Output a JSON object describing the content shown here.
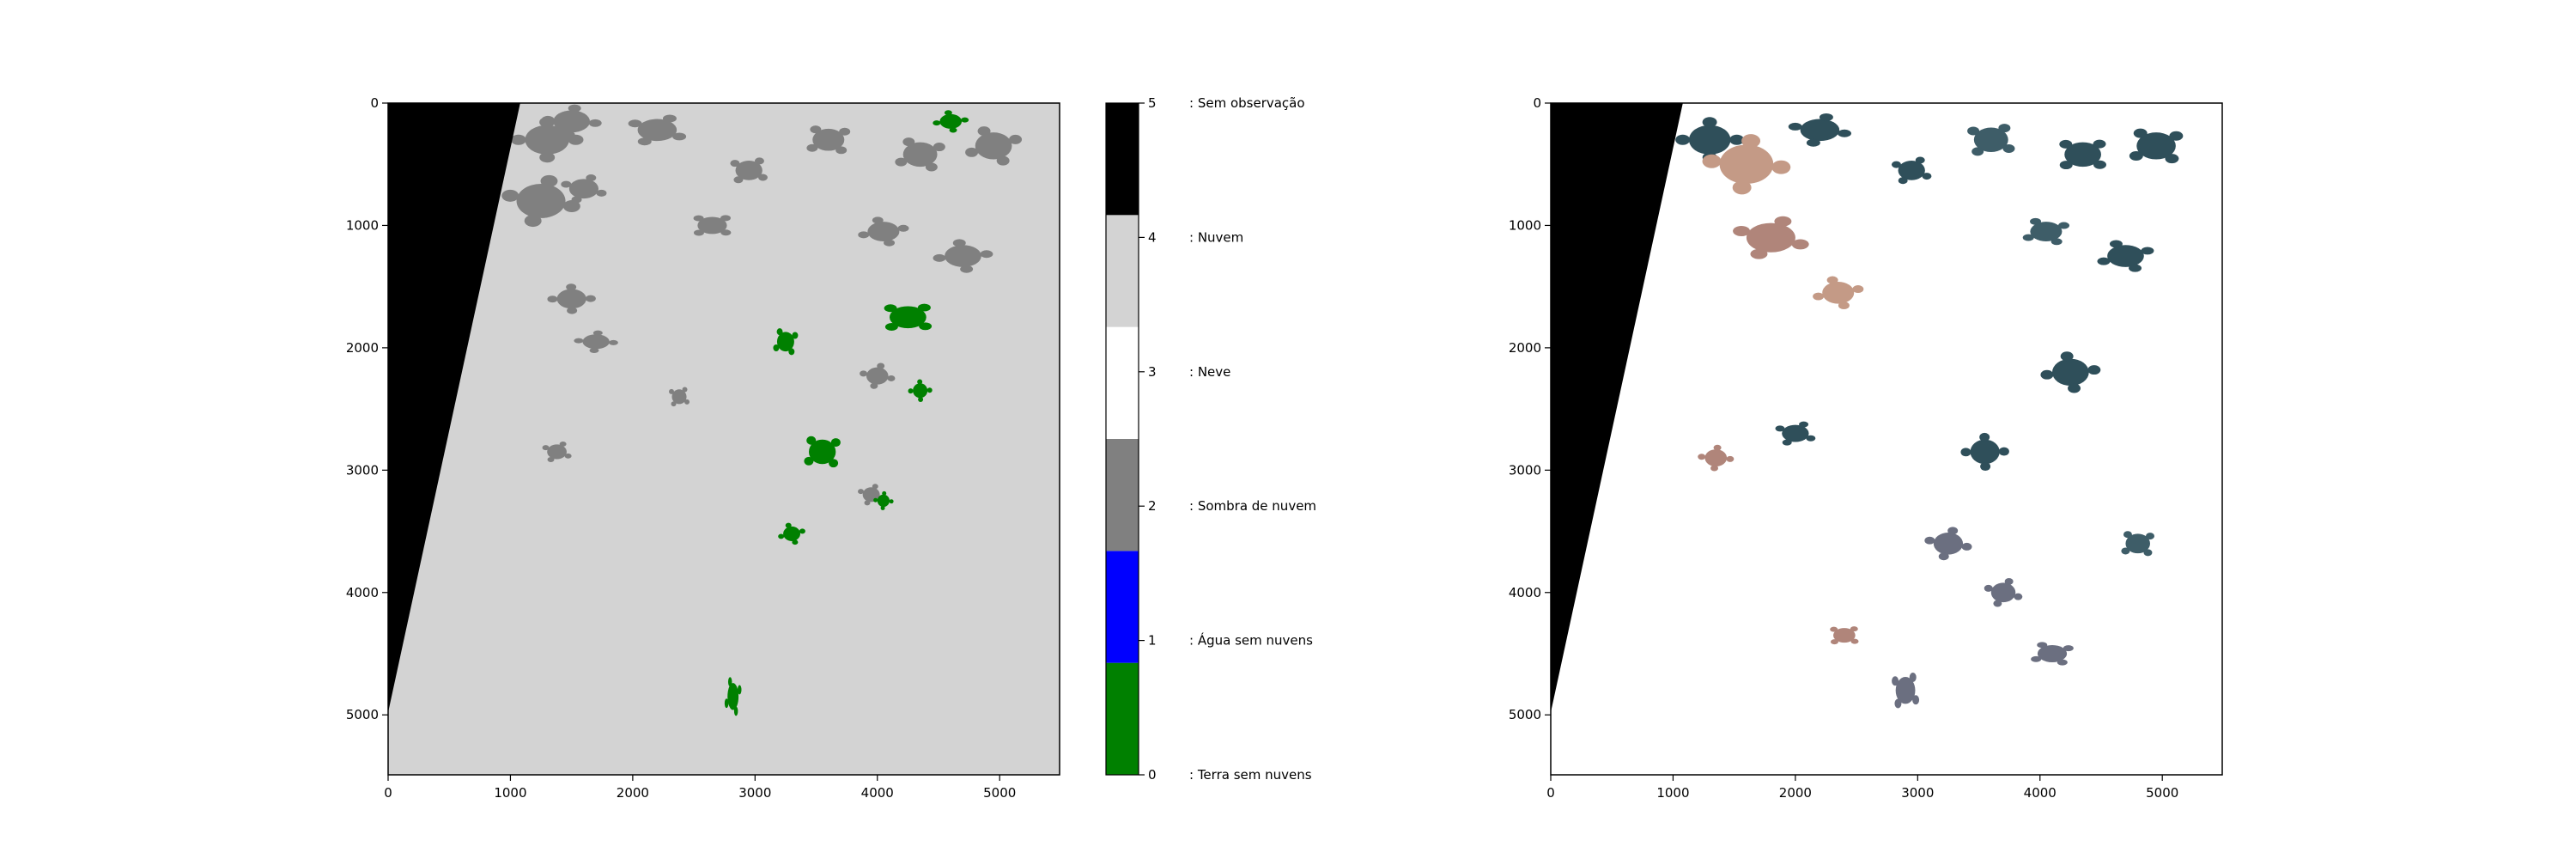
{
  "chart_data": [
    {
      "type": "heatmap",
      "title": "",
      "xlabel": "",
      "ylabel": "",
      "xlim": [
        0,
        5490
      ],
      "ylim": [
        5490,
        0
      ],
      "xticks": [
        0,
        1000,
        2000,
        3000,
        4000,
        5000
      ],
      "yticks": [
        0,
        1000,
        2000,
        3000,
        4000,
        5000
      ],
      "no_data_wedge": {
        "top_x": [
          0,
          1080
        ],
        "bottom_y": 4980
      },
      "background_class": 4,
      "patches": [
        {
          "class": 2,
          "x": 1300,
          "y": 300,
          "rx": 180,
          "ry": 120
        },
        {
          "class": 2,
          "x": 1500,
          "y": 150,
          "rx": 150,
          "ry": 90
        },
        {
          "class": 2,
          "x": 1250,
          "y": 800,
          "rx": 200,
          "ry": 140
        },
        {
          "class": 2,
          "x": 1600,
          "y": 700,
          "rx": 120,
          "ry": 80
        },
        {
          "class": 2,
          "x": 2200,
          "y": 220,
          "rx": 160,
          "ry": 90
        },
        {
          "class": 2,
          "x": 2950,
          "y": 550,
          "rx": 110,
          "ry": 80
        },
        {
          "class": 2,
          "x": 2650,
          "y": 1000,
          "rx": 120,
          "ry": 70
        },
        {
          "class": 2,
          "x": 3600,
          "y": 300,
          "rx": 130,
          "ry": 90
        },
        {
          "class": 2,
          "x": 4350,
          "y": 420,
          "rx": 140,
          "ry": 100
        },
        {
          "class": 2,
          "x": 4950,
          "y": 350,
          "rx": 150,
          "ry": 110
        },
        {
          "class": 2,
          "x": 4050,
          "y": 1050,
          "rx": 130,
          "ry": 80
        },
        {
          "class": 2,
          "x": 4700,
          "y": 1250,
          "rx": 150,
          "ry": 90
        },
        {
          "class": 2,
          "x": 1500,
          "y": 1600,
          "rx": 120,
          "ry": 80
        },
        {
          "class": 2,
          "x": 1700,
          "y": 1950,
          "rx": 110,
          "ry": 60
        },
        {
          "class": 2,
          "x": 4000,
          "y": 2230,
          "rx": 90,
          "ry": 70
        },
        {
          "class": 2,
          "x": 3950,
          "y": 3200,
          "rx": 70,
          "ry": 60
        },
        {
          "class": 2,
          "x": 1380,
          "y": 2850,
          "rx": 80,
          "ry": 60
        },
        {
          "class": 2,
          "x": 2380,
          "y": 2400,
          "rx": 60,
          "ry": 60
        },
        {
          "class": 0,
          "x": 4250,
          "y": 1750,
          "rx": 150,
          "ry": 90
        },
        {
          "class": 0,
          "x": 3550,
          "y": 2850,
          "rx": 110,
          "ry": 100
        },
        {
          "class": 0,
          "x": 3250,
          "y": 1950,
          "rx": 70,
          "ry": 80
        },
        {
          "class": 0,
          "x": 2820,
          "y": 4850,
          "rx": 45,
          "ry": 110
        },
        {
          "class": 0,
          "x": 3300,
          "y": 3520,
          "rx": 70,
          "ry": 60
        },
        {
          "class": 0,
          "x": 4600,
          "y": 150,
          "rx": 90,
          "ry": 60
        },
        {
          "class": 0,
          "x": 4350,
          "y": 2350,
          "rx": 60,
          "ry": 60
        },
        {
          "class": 0,
          "x": 4050,
          "y": 3250,
          "rx": 50,
          "ry": 50
        }
      ]
    },
    {
      "type": "heatmap",
      "title": "",
      "xlabel": "",
      "ylabel": "",
      "xlim": [
        0,
        5490
      ],
      "ylim": [
        5490,
        0
      ],
      "xticks": [
        0,
        1000,
        2000,
        3000,
        4000,
        5000
      ],
      "yticks": [
        0,
        1000,
        2000,
        3000,
        4000,
        5000
      ],
      "no_data_wedge": {
        "top_x": [
          0,
          1080
        ],
        "bottom_y": 4980
      },
      "background_color": "#ffffff",
      "patches": [
        {
          "color": "#2f4f5a",
          "x": 1300,
          "y": 300,
          "rx": 170,
          "ry": 120
        },
        {
          "color": "#c49a86",
          "x": 1600,
          "y": 500,
          "rx": 220,
          "ry": 160
        },
        {
          "color": "#2f4f5a",
          "x": 2200,
          "y": 220,
          "rx": 160,
          "ry": 90
        },
        {
          "color": "#b0857a",
          "x": 1800,
          "y": 1100,
          "rx": 200,
          "ry": 120
        },
        {
          "color": "#2f4f5a",
          "x": 2950,
          "y": 550,
          "rx": 110,
          "ry": 80
        },
        {
          "color": "#3e5d68",
          "x": 3600,
          "y": 300,
          "rx": 140,
          "ry": 100
        },
        {
          "color": "#2f4f5a",
          "x": 4350,
          "y": 420,
          "rx": 150,
          "ry": 100
        },
        {
          "color": "#2f4f5a",
          "x": 4950,
          "y": 350,
          "rx": 160,
          "ry": 110
        },
        {
          "color": "#3e5d68",
          "x": 4050,
          "y": 1050,
          "rx": 130,
          "ry": 80
        },
        {
          "color": "#2f4f5a",
          "x": 4700,
          "y": 1250,
          "rx": 150,
          "ry": 90
        },
        {
          "color": "#c49a86",
          "x": 2350,
          "y": 1550,
          "rx": 130,
          "ry": 90
        },
        {
          "color": "#2f4f5a",
          "x": 4250,
          "y": 2200,
          "rx": 150,
          "ry": 110
        },
        {
          "color": "#2f4f5a",
          "x": 3550,
          "y": 2850,
          "rx": 120,
          "ry": 100
        },
        {
          "color": "#b0857a",
          "x": 1350,
          "y": 2900,
          "rx": 90,
          "ry": 70
        },
        {
          "color": "#6b6f80",
          "x": 3250,
          "y": 3600,
          "rx": 120,
          "ry": 90
        },
        {
          "color": "#6b6f80",
          "x": 3700,
          "y": 4000,
          "rx": 100,
          "ry": 80
        },
        {
          "color": "#2f4f5a",
          "x": 2000,
          "y": 2700,
          "rx": 110,
          "ry": 70
        },
        {
          "color": "#6b6f80",
          "x": 2900,
          "y": 4800,
          "rx": 80,
          "ry": 110
        },
        {
          "color": "#b0857a",
          "x": 2400,
          "y": 4350,
          "rx": 90,
          "ry": 60
        },
        {
          "color": "#3e5d68",
          "x": 4800,
          "y": 3600,
          "rx": 100,
          "ry": 80
        },
        {
          "color": "#6b6f80",
          "x": 4100,
          "y": 4500,
          "rx": 120,
          "ry": 70
        }
      ]
    }
  ],
  "colorbar": {
    "ticks": [
      "0",
      "1",
      "2",
      "3",
      "4",
      "5"
    ],
    "classes": [
      {
        "value": 0,
        "color": "#008000",
        "label": ": Terra sem nuvens"
      },
      {
        "value": 1,
        "color": "#0000ff",
        "label": ": Água sem nuvens"
      },
      {
        "value": 2,
        "color": "#808080",
        "label": ": Sombra de nuvem"
      },
      {
        "value": 3,
        "color": "#ffffff",
        "label": ": Neve"
      },
      {
        "value": 4,
        "color": "#d3d3d3",
        "label": ": Nuvem"
      },
      {
        "value": 5,
        "color": "#000000",
        "label": ": Sem observação"
      }
    ]
  }
}
